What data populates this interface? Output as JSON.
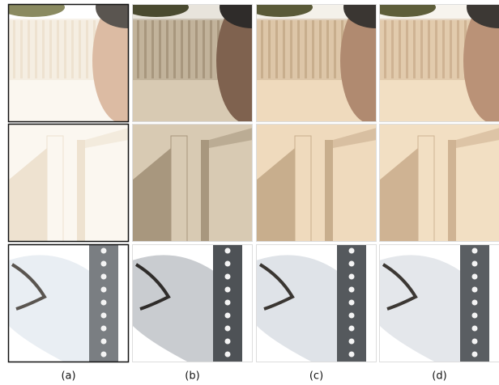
{
  "columns": [
    {
      "label": "(a)"
    },
    {
      "label": "(b)"
    },
    {
      "label": "(c)"
    },
    {
      "label": "(d)"
    }
  ]
}
